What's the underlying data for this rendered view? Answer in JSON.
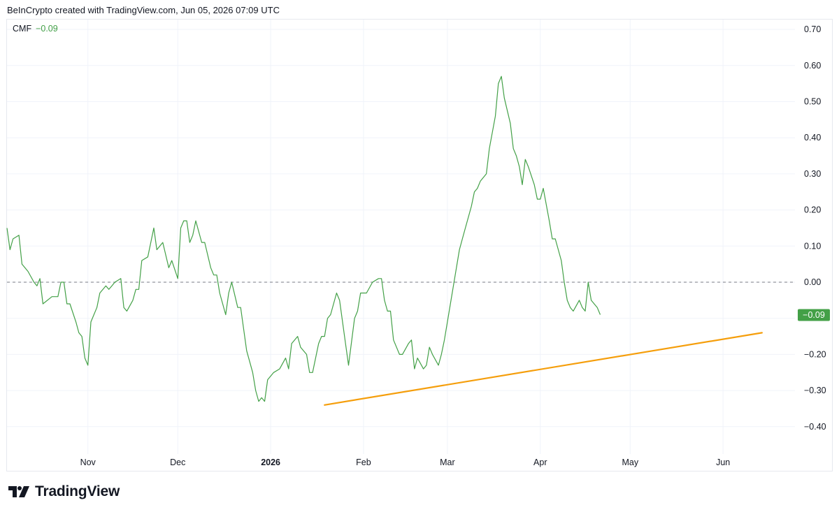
{
  "header": {
    "caption": "BeInCrypto created with TradingView.com, Jun 05, 2026 07:09 UTC"
  },
  "legend": {
    "name": "CMF",
    "value": "−0.09"
  },
  "brand": {
    "name": "TradingView"
  },
  "colors": {
    "line": "#43a047",
    "trendline": "#f59e0b",
    "badge": "#43a047",
    "zero_line": "#787b86",
    "grid": "#f0f3fa"
  },
  "chart_data": {
    "type": "line",
    "title": "",
    "xlabel": "",
    "ylabel": "",
    "x_ticks": [
      {
        "label": "Nov",
        "date": "2025-11-01",
        "bold": false
      },
      {
        "label": "Dec",
        "date": "2025-12-01",
        "bold": false
      },
      {
        "label": "2026",
        "date": "2026-01-01",
        "bold": true
      },
      {
        "label": "Feb",
        "date": "2026-02-01",
        "bold": false
      },
      {
        "label": "Mar",
        "date": "2026-03-01",
        "bold": false
      },
      {
        "label": "Apr",
        "date": "2026-04-01",
        "bold": false
      },
      {
        "label": "May",
        "date": "2026-05-01",
        "bold": false
      },
      {
        "label": "Jun",
        "date": "2026-06-01",
        "bold": false
      }
    ],
    "y_ticks": [
      "0.70",
      "0.60",
      "0.50",
      "0.40",
      "0.30",
      "0.20",
      "0.10",
      "0.00",
      "−0.10",
      "−0.20",
      "−0.30",
      "−0.40"
    ],
    "y_tick_values": [
      0.7,
      0.6,
      0.5,
      0.4,
      0.3,
      0.2,
      0.1,
      0.0,
      -0.1,
      -0.2,
      -0.3,
      -0.4
    ],
    "ylim": [
      -0.47,
      0.72
    ],
    "xlim": [
      "2025-10-05",
      "2026-06-25"
    ],
    "zero_line": 0.0,
    "last_value_label": "−0.09",
    "series": [
      {
        "name": "CMF",
        "points": [
          [
            "2025-10-05",
            0.15
          ],
          [
            "2025-10-06",
            0.09
          ],
          [
            "2025-10-07",
            0.12
          ],
          [
            "2025-10-09",
            0.13
          ],
          [
            "2025-10-10",
            0.05
          ],
          [
            "2025-10-12",
            0.03
          ],
          [
            "2025-10-14",
            0.0
          ],
          [
            "2025-10-15",
            -0.01
          ],
          [
            "2025-10-16",
            0.01
          ],
          [
            "2025-10-17",
            -0.06
          ],
          [
            "2025-10-20",
            -0.04
          ],
          [
            "2025-10-22",
            -0.04
          ],
          [
            "2025-10-23",
            0.0
          ],
          [
            "2025-10-24",
            0.0
          ],
          [
            "2025-10-25",
            -0.06
          ],
          [
            "2025-10-26",
            -0.06
          ],
          [
            "2025-10-28",
            -0.11
          ],
          [
            "2025-10-29",
            -0.14
          ],
          [
            "2025-10-30",
            -0.15
          ],
          [
            "2025-10-31",
            -0.21
          ],
          [
            "2025-11-01",
            -0.23
          ],
          [
            "2025-11-02",
            -0.11
          ],
          [
            "2025-11-04",
            -0.07
          ],
          [
            "2025-11-05",
            -0.03
          ],
          [
            "2025-11-07",
            -0.01
          ],
          [
            "2025-11-08",
            -0.02
          ],
          [
            "2025-11-09",
            -0.01
          ],
          [
            "2025-11-10",
            0.0
          ],
          [
            "2025-11-12",
            0.01
          ],
          [
            "2025-11-13",
            -0.07
          ],
          [
            "2025-11-14",
            -0.08
          ],
          [
            "2025-11-16",
            -0.05
          ],
          [
            "2025-11-17",
            -0.02
          ],
          [
            "2025-11-18",
            -0.02
          ],
          [
            "2025-11-19",
            0.06
          ],
          [
            "2025-11-21",
            0.07
          ],
          [
            "2025-11-23",
            0.15
          ],
          [
            "2025-11-24",
            0.09
          ],
          [
            "2025-11-26",
            0.11
          ],
          [
            "2025-11-28",
            0.04
          ],
          [
            "2025-11-29",
            0.06
          ],
          [
            "2025-12-01",
            0.01
          ],
          [
            "2025-12-02",
            0.15
          ],
          [
            "2025-12-03",
            0.17
          ],
          [
            "2025-12-04",
            0.17
          ],
          [
            "2025-12-05",
            0.11
          ],
          [
            "2025-12-06",
            0.13
          ],
          [
            "2025-12-07",
            0.17
          ],
          [
            "2025-12-09",
            0.11
          ],
          [
            "2025-12-10",
            0.11
          ],
          [
            "2025-12-12",
            0.04
          ],
          [
            "2025-12-13",
            0.02
          ],
          [
            "2025-12-14",
            0.02
          ],
          [
            "2025-12-15",
            -0.03
          ],
          [
            "2025-12-17",
            -0.09
          ],
          [
            "2025-12-18",
            -0.03
          ],
          [
            "2025-12-19",
            0.0
          ],
          [
            "2025-12-21",
            -0.07
          ],
          [
            "2025-12-22",
            -0.07
          ],
          [
            "2025-12-24",
            -0.19
          ],
          [
            "2025-12-25",
            -0.22
          ],
          [
            "2025-12-26",
            -0.25
          ],
          [
            "2025-12-27",
            -0.3
          ],
          [
            "2025-12-28",
            -0.33
          ],
          [
            "2025-12-29",
            -0.32
          ],
          [
            "2025-12-30",
            -0.33
          ],
          [
            "2025-12-31",
            -0.27
          ],
          [
            "2026-01-02",
            -0.25
          ],
          [
            "2026-01-04",
            -0.24
          ],
          [
            "2026-01-06",
            -0.21
          ],
          [
            "2026-01-07",
            -0.24
          ],
          [
            "2026-01-08",
            -0.17
          ],
          [
            "2026-01-10",
            -0.15
          ],
          [
            "2026-01-11",
            -0.18
          ],
          [
            "2026-01-13",
            -0.2
          ],
          [
            "2026-01-14",
            -0.25
          ],
          [
            "2026-01-15",
            -0.25
          ],
          [
            "2026-01-17",
            -0.17
          ],
          [
            "2026-01-18",
            -0.15
          ],
          [
            "2026-01-19",
            -0.15
          ],
          [
            "2026-01-20",
            -0.1
          ],
          [
            "2026-01-21",
            -0.09
          ],
          [
            "2026-01-23",
            -0.03
          ],
          [
            "2026-01-24",
            -0.05
          ],
          [
            "2026-01-26",
            -0.17
          ],
          [
            "2026-01-27",
            -0.23
          ],
          [
            "2026-01-29",
            -0.1
          ],
          [
            "2026-01-30",
            -0.08
          ],
          [
            "2026-01-31",
            -0.03
          ],
          [
            "2026-02-02",
            -0.03
          ],
          [
            "2026-02-04",
            0.0
          ],
          [
            "2026-02-06",
            0.01
          ],
          [
            "2026-02-07",
            0.01
          ],
          [
            "2026-02-08",
            -0.05
          ],
          [
            "2026-02-09",
            -0.08
          ],
          [
            "2026-02-10",
            -0.08
          ],
          [
            "2026-02-11",
            -0.16
          ],
          [
            "2026-02-13",
            -0.2
          ],
          [
            "2026-02-14",
            -0.2
          ],
          [
            "2026-02-16",
            -0.17
          ],
          [
            "2026-02-17",
            -0.16
          ],
          [
            "2026-02-18",
            -0.24
          ],
          [
            "2026-02-19",
            -0.21
          ],
          [
            "2026-02-21",
            -0.24
          ],
          [
            "2026-02-22",
            -0.23
          ],
          [
            "2026-02-23",
            -0.18
          ],
          [
            "2026-02-24",
            -0.2
          ],
          [
            "2026-02-26",
            -0.23
          ],
          [
            "2026-02-27",
            -0.2
          ],
          [
            "2026-02-28",
            -0.16
          ],
          [
            "2026-03-02",
            -0.06
          ],
          [
            "2026-03-04",
            0.04
          ],
          [
            "2026-03-05",
            0.09
          ],
          [
            "2026-03-06",
            0.12
          ],
          [
            "2026-03-07",
            0.15
          ],
          [
            "2026-03-09",
            0.21
          ],
          [
            "2026-03-10",
            0.25
          ],
          [
            "2026-03-11",
            0.26
          ],
          [
            "2026-03-12",
            0.28
          ],
          [
            "2026-03-13",
            0.29
          ],
          [
            "2026-03-14",
            0.3
          ],
          [
            "2026-03-15",
            0.37
          ],
          [
            "2026-03-17",
            0.46
          ],
          [
            "2026-03-18",
            0.55
          ],
          [
            "2026-03-19",
            0.57
          ],
          [
            "2026-03-20",
            0.51
          ],
          [
            "2026-03-22",
            0.44
          ],
          [
            "2026-03-23",
            0.37
          ],
          [
            "2026-03-24",
            0.35
          ],
          [
            "2026-03-25",
            0.32
          ],
          [
            "2026-03-26",
            0.27
          ],
          [
            "2026-03-27",
            0.34
          ],
          [
            "2026-03-28",
            0.32
          ],
          [
            "2026-03-30",
            0.27
          ],
          [
            "2026-03-31",
            0.23
          ],
          [
            "2026-04-01",
            0.23
          ],
          [
            "2026-04-02",
            0.26
          ],
          [
            "2026-04-04",
            0.17
          ],
          [
            "2026-04-05",
            0.12
          ],
          [
            "2026-04-06",
            0.12
          ],
          [
            "2026-04-08",
            0.06
          ],
          [
            "2026-04-09",
            0.0
          ],
          [
            "2026-04-10",
            -0.05
          ],
          [
            "2026-04-11",
            -0.07
          ],
          [
            "2026-04-12",
            -0.08
          ],
          [
            "2026-04-14",
            -0.05
          ],
          [
            "2026-04-15",
            -0.07
          ],
          [
            "2026-04-16",
            -0.08
          ],
          [
            "2026-04-17",
            0.0
          ],
          [
            "2026-04-18",
            -0.05
          ],
          [
            "2026-04-20",
            -0.07
          ],
          [
            "2026-04-21",
            -0.09
          ]
        ]
      },
      {
        "name": "",
        "type": "trendline",
        "points": [
          [
            "2026-01-19",
            -0.34
          ],
          [
            "2026-06-14",
            -0.14
          ]
        ]
      }
    ]
  }
}
